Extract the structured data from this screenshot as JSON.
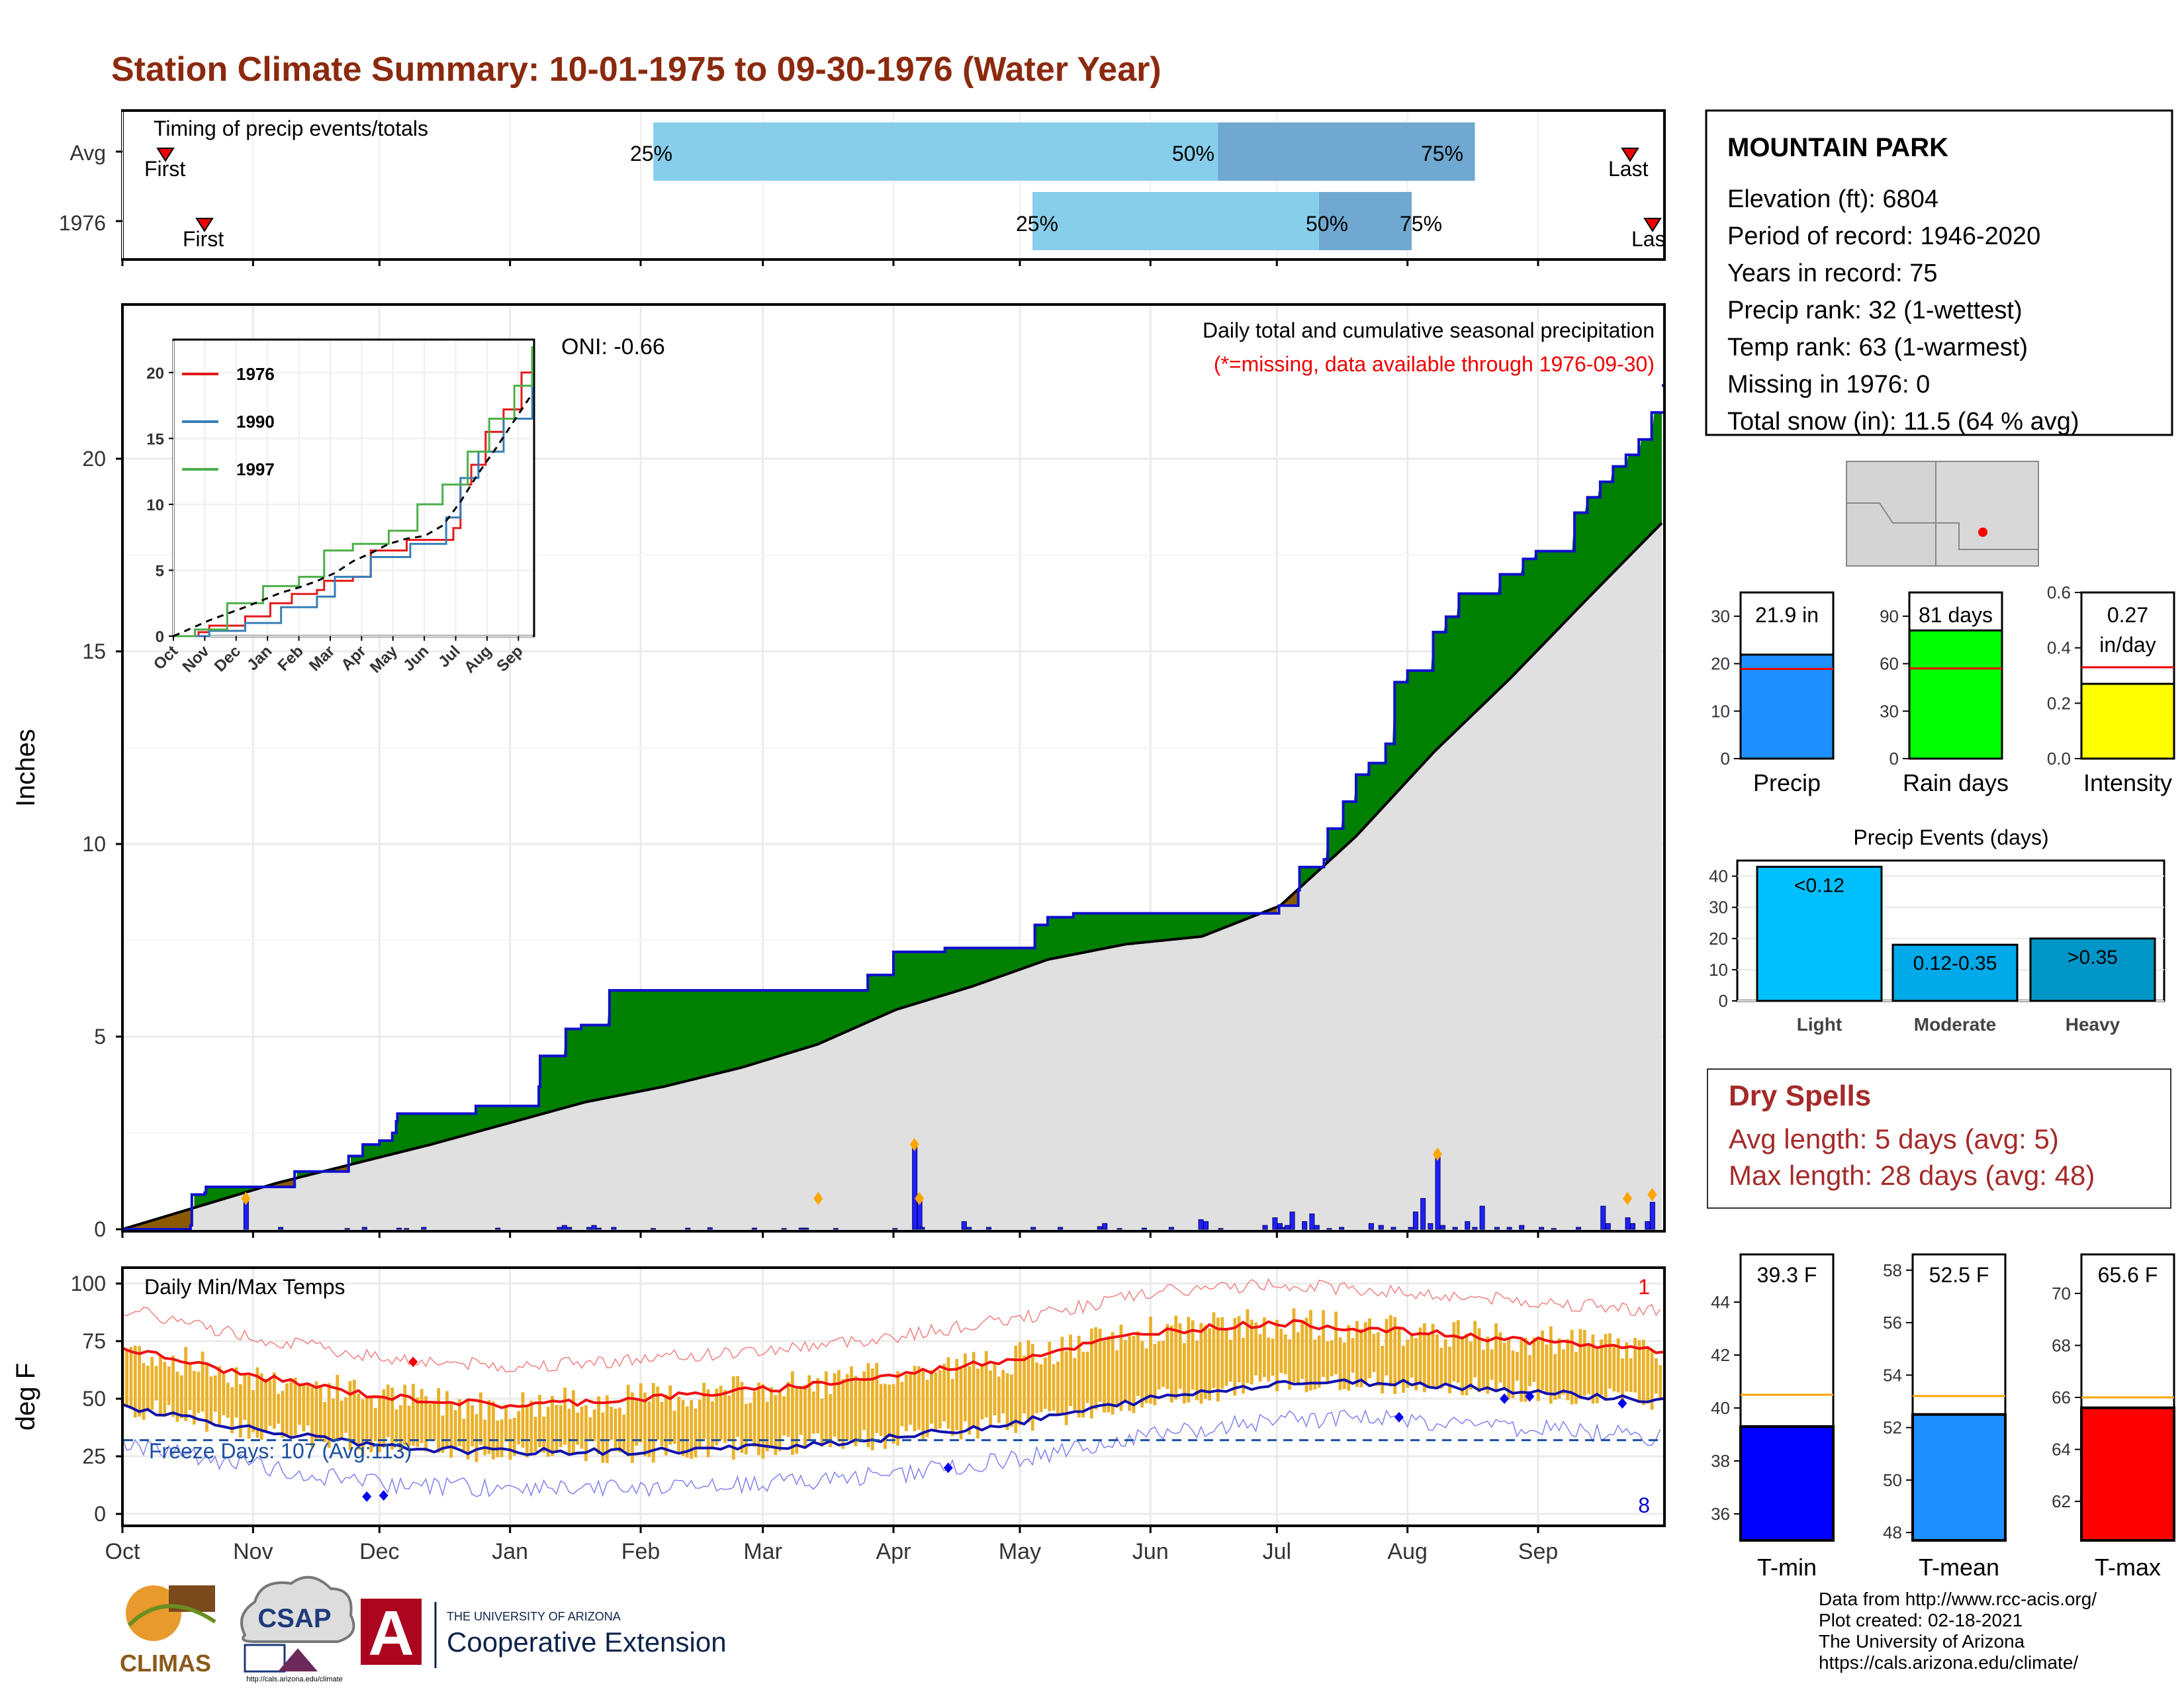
{
  "title": "Station Climate Summary: 10-01-1975 to 09-30-1976 (Water Year)",
  "colors": {
    "title": "#8B2A0E",
    "deficit": "#8B5A00",
    "surplus": "#008000",
    "cum_line": "#1010cc",
    "fill_gray": "#e0e0e0",
    "precip_bar": "#1f77ff",
    "temp_bar": "#EAB12A",
    "tmax": "#ee1111",
    "tmin": "#1111aa",
    "freeze": "#1a4fa0",
    "dry": "#A52A2A",
    "iqr_light": "#87CEEB",
    "iqr_dark": "#6FA8D0"
  },
  "timing_panel": {
    "label": "Timing of precip events/totals",
    "rows": [
      {
        "name": "Avg",
        "first": "First",
        "last": "Last",
        "p25": "25%",
        "p50": "50%",
        "p75": "75%",
        "first_day": 8,
        "q25": 126,
        "q50": 260,
        "q75": 321,
        "last_day": 350
      },
      {
        "name": "1976",
        "first": "First",
        "last": "Las",
        "p25": "25%",
        "p50": "50%",
        "p75": "75%",
        "first_day": 20,
        "q25": 216,
        "q50": 284,
        "q75": 306,
        "last_day": 359
      }
    ]
  },
  "station_info": {
    "name": "MOUNTAIN PARK",
    "lines": [
      "Elevation (ft): 6804",
      "Period of record: 1946-2020",
      "Years in record: 75",
      "Precip rank: 32 (1-wettest)",
      "Temp rank: 63 (1-warmest)",
      "Missing in 1976: 0",
      "Total snow (in): 11.5 (64 % avg)"
    ]
  },
  "precip_panel": {
    "ylabel": "Inches",
    "title": "Daily total and cumulative seasonal precipitation",
    "note": "(*=missing, data available through 1976-09-30)",
    "oni": "ONI: -0.66",
    "y_ticks": [
      "0",
      "5",
      "10",
      "15",
      "20"
    ]
  },
  "month_labels": [
    "Oct",
    "Nov",
    "Dec",
    "Jan",
    "Feb",
    "Mar",
    "Apr",
    "May",
    "Jun",
    "Jul",
    "Aug",
    "Sep"
  ],
  "inset": {
    "legend": [
      "1976",
      "1990",
      "1997"
    ],
    "legend_colors": [
      "#e41a1c",
      "#377eb8",
      "#4daf4a"
    ],
    "y_ticks": [
      "0",
      "5",
      "10",
      "15",
      "20"
    ],
    "x_ticks": [
      "Oct",
      "Nov",
      "Dec",
      "Jan",
      "Feb",
      "Mar",
      "Apr",
      "May",
      "Jun",
      "Jul",
      "Aug",
      "Sep"
    ]
  },
  "temp_panel": {
    "ylabel": "deg F",
    "label": "Daily Min/Max Temps",
    "freeze": "Freeze Days: 107 (Avg:113)",
    "rank_top": "1",
    "rank_bottom": "8",
    "y_ticks": [
      "0",
      "25",
      "50",
      "75",
      "100"
    ]
  },
  "mini_bars": [
    {
      "label": "Precip",
      "value_text": "21.9 in",
      "ticks": [
        "0",
        "10",
        "20",
        "30"
      ],
      "value": 21.9,
      "avg": 18.9,
      "ymax": 35,
      "color": "#1E90FF"
    },
    {
      "label": "Rain days",
      "value_text": "81 days",
      "ticks": [
        "0",
        "30",
        "60",
        "90"
      ],
      "value": 81,
      "avg": 57,
      "ymax": 105,
      "color": "#00FF00"
    },
    {
      "label": "Intensity",
      "value_text": "0.27",
      "value_text2": "in/day",
      "ticks": [
        "0.0",
        "0.2",
        "0.4",
        "0.6"
      ],
      "value": 0.27,
      "avg": 0.33,
      "ymax": 0.6,
      "color": "#FFFF00"
    }
  ],
  "events": {
    "title": "Precip Events (days)",
    "y_ticks": [
      "0",
      "10",
      "20",
      "30",
      "40"
    ],
    "bars": [
      {
        "cat": "Light",
        "label": "<0.12",
        "value": 43,
        "color": "#00BFFF"
      },
      {
        "cat": "Moderate",
        "label": "0.12-0.35",
        "value": 18,
        "color": "#00A9E8"
      },
      {
        "cat": "Heavy",
        "label": ">0.35",
        "value": 20,
        "color": "#0096C7"
      }
    ]
  },
  "dry_spells": {
    "title": "Dry Spells",
    "avg": "Avg length: 5 days (avg: 5)",
    "max": "Max length: 28 days (avg: 48)"
  },
  "temp_bars": [
    {
      "label": "T-min",
      "value_text": "39.3 F",
      "ticks": [
        "36",
        "38",
        "40",
        "42",
        "44"
      ],
      "value": 39.3,
      "avg": 40.5,
      "ymin": 35,
      "ymax": 45.8,
      "color": "#0000FF"
    },
    {
      "label": "T-mean",
      "value_text": "52.5 F",
      "ticks": [
        "48",
        "50",
        "52",
        "54",
        "56",
        "58"
      ],
      "value": 52.5,
      "avg": 53.2,
      "ymin": 47.7,
      "ymax": 58.6,
      "color": "#1E90FF"
    },
    {
      "label": "T-max",
      "value_text": "65.6 F",
      "ticks": [
        "62",
        "64",
        "66",
        "68",
        "70"
      ],
      "value": 65.6,
      "avg": 66.0,
      "ymin": 60.5,
      "ymax": 71.5,
      "color": "#FF0000"
    }
  ],
  "logos": {
    "climas": "CLIMAS",
    "csap": "CSAP",
    "csap_url": "http://cals.arizona.edu/climate",
    "ua_line1": "THE UNIVERSITY OF ARIZONA",
    "ua_line2": "Cooperative Extension"
  },
  "credits": [
    "Data from http://www.rcc-acis.org/",
    "Plot created: 02-18-2021",
    "The University of Arizona",
    "https://cals.arizona.edu/climate/"
  ],
  "chart_data": [
    {
      "type": "area",
      "title": "Daily total and cumulative seasonal precipitation",
      "ylabel": "Inches",
      "ylim": [
        0,
        22
      ],
      "x_unit": "day of water year (Oct 1 = 0)",
      "cumulative_1976": [
        [
          0,
          0
        ],
        [
          53,
          0.1
        ],
        [
          54,
          0.9
        ],
        [
          64,
          0.95
        ],
        [
          65,
          1.1
        ],
        [
          133,
          1.1
        ],
        [
          134,
          1.5
        ],
        [
          175,
          1.5
        ],
        [
          176,
          1.9
        ],
        [
          186,
          1.9
        ],
        [
          187,
          2.2
        ],
        [
          200,
          2.3
        ],
        [
          210,
          2.5
        ],
        [
          213,
          2.8
        ],
        [
          214,
          3.0
        ],
        [
          275,
          3.2
        ],
        [
          300,
          3.2
        ],
        [
          324,
          3.7
        ],
        [
          325,
          4.5
        ],
        [
          340,
          4.5
        ],
        [
          345,
          5.2
        ],
        [
          357,
          5.3
        ],
        [
          358,
          5.3
        ],
        [
          379,
          6.2
        ],
        [
          580,
          6.6
        ],
        [
          600,
          7.2
        ],
        [
          640,
          7.3
        ],
        [
          700,
          7.3
        ],
        [
          710,
          7.9
        ],
        [
          720,
          8.1
        ],
        [
          740,
          8.2
        ],
        [
          900,
          8.4
        ],
        [
          915,
          8.8
        ],
        [
          916,
          9.4
        ],
        [
          935,
          9.6
        ],
        [
          938,
          10.4
        ],
        [
          950,
          11.1
        ],
        [
          960,
          11.8
        ],
        [
          970,
          12.1
        ],
        [
          983,
          12.6
        ],
        [
          990,
          14.2
        ],
        [
          1000,
          14.5
        ],
        [
          1020,
          15.5
        ],
        [
          1030,
          15.9
        ],
        [
          1040,
          16.5
        ],
        [
          1072,
          17.0
        ],
        [
          1090,
          17.4
        ],
        [
          1100,
          17.6
        ],
        [
          1130,
          18.6
        ],
        [
          1140,
          19.0
        ],
        [
          1150,
          19.4
        ],
        [
          1160,
          19.8
        ],
        [
          1170,
          20.1
        ],
        [
          1180,
          20.5
        ],
        [
          1190,
          21.2
        ],
        [
          1200,
          21.9
        ]
      ],
      "cumulative_avg": [
        [
          0,
          0
        ],
        [
          61,
          1.2
        ],
        [
          122,
          2.2
        ],
        [
          183,
          3.3
        ],
        [
          214,
          3.7
        ],
        [
          245,
          4.2
        ],
        [
          275,
          4.8
        ],
        [
          306,
          5.7
        ],
        [
          336,
          6.3
        ],
        [
          366,
          7.0
        ],
        [
          397,
          7.4
        ],
        [
          427,
          7.6
        ],
        [
          458,
          8.4
        ],
        [
          488,
          10.2
        ],
        [
          519,
          12.4
        ],
        [
          549,
          14.3
        ],
        [
          580,
          16.4
        ],
        [
          610,
          18.4
        ]
      ],
      "avg_total": 18.9,
      "total_1976": 21.9,
      "daily_notable": [
        {
          "date": "11-19",
          "in": 0.8
        },
        {
          "date": "05-02",
          "in": 2.2
        },
        {
          "date": "05-04",
          "in": 0.8
        },
        {
          "date": "04-14",
          "in": 0.8
        },
        {
          "date": "07-21",
          "in": 2.0
        },
        {
          "date": "09-24",
          "in": 0.9
        }
      ]
    },
    {
      "type": "line",
      "title": "Daily Min/Max Temps",
      "ylabel": "deg F",
      "ylim": [
        -10,
        105
      ],
      "series": [
        {
          "name": "T-max avg",
          "x": [
            "Oct",
            "Nov",
            "Dec",
            "Jan",
            "Feb",
            "Mar",
            "Apr",
            "May",
            "Jun",
            "Jul",
            "Aug",
            "Sep"
          ],
          "values": [
            72,
            60,
            51,
            47,
            50,
            54,
            60,
            68,
            79,
            83,
            79,
            75
          ]
        },
        {
          "name": "T-min avg",
          "x": [
            "Oct",
            "Nov",
            "Dec",
            "Jan",
            "Feb",
            "Mar",
            "Apr",
            "May",
            "Jun",
            "Jul",
            "Aug",
            "Sep"
          ],
          "values": [
            47,
            37,
            29,
            27,
            27,
            29,
            33,
            40,
            50,
            57,
            57,
            53
          ]
        }
      ],
      "freeze_line": 32
    },
    {
      "type": "line",
      "title": "",
      "series_names": [
        "1976",
        "1990",
        "1997"
      ],
      "ylim": [
        0,
        22
      ]
    }
  ]
}
